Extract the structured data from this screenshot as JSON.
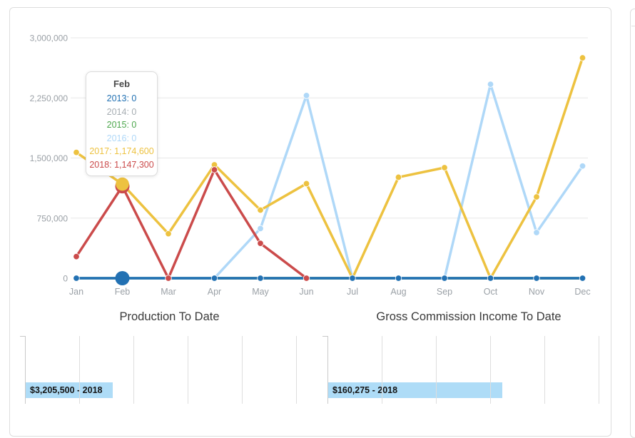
{
  "tooltip": {
    "title": "Feb",
    "rows": [
      {
        "year": "2013",
        "value": "0"
      },
      {
        "year": "2014",
        "value": "0"
      },
      {
        "year": "2015",
        "value": "0"
      },
      {
        "year": "2016",
        "value": "0"
      },
      {
        "year": "2017",
        "value": "1,174,600"
      },
      {
        "year": "2018",
        "value": "1,147,300"
      }
    ]
  },
  "chart_data": [
    {
      "type": "line",
      "title": "",
      "categories": [
        "Jan",
        "Feb",
        "Mar",
        "Apr",
        "May",
        "Jun",
        "Jul",
        "Aug",
        "Sep",
        "Oct",
        "Nov",
        "Dec"
      ],
      "ylim": [
        0,
        3000000
      ],
      "grid": true,
      "y_ticks": [
        {
          "value": 0,
          "label": "0"
        },
        {
          "value": 750000,
          "label": "750,000"
        },
        {
          "value": 1500000,
          "label": "1,500,000"
        },
        {
          "value": 2250000,
          "label": "2,250,000"
        },
        {
          "value": 3000000,
          "label": "3,000,000"
        }
      ],
      "highlight_index": 1,
      "highlight_month": "Feb",
      "series": [
        {
          "name": "2013",
          "color": "#2271b3",
          "values": [
            0,
            0,
            0,
            0,
            0,
            0,
            0,
            0,
            0,
            0,
            0,
            0
          ]
        },
        {
          "name": "2014",
          "color": "#a6adb2",
          "values": [
            0,
            0,
            0,
            0,
            0,
            0,
            0,
            0,
            0,
            0,
            0,
            0
          ]
        },
        {
          "name": "2015",
          "color": "#4da74d",
          "values": [
            0,
            0,
            0,
            0,
            0,
            0,
            0,
            0,
            0,
            0,
            0,
            0
          ]
        },
        {
          "name": "2016",
          "color": "#afd8f8",
          "values": [
            0,
            0,
            0,
            0,
            620000,
            2280000,
            0,
            0,
            0,
            2420000,
            570000,
            1400000
          ]
        },
        {
          "name": "2017",
          "color": "#edc240",
          "values": [
            1570000,
            1174600,
            555000,
            1415000,
            850000,
            1180000,
            0,
            1260000,
            1380000,
            0,
            1015000,
            2750000
          ]
        },
        {
          "name": "2018",
          "color": "#cb4b4b",
          "values": [
            270000,
            1147300,
            0,
            1353200,
            435000,
            0,
            null,
            null,
            null,
            null,
            null,
            null
          ]
        }
      ]
    },
    {
      "type": "bar",
      "orientation": "horizontal",
      "title": "Production To Date",
      "grid_step_value": 2000000,
      "bar_color": "#aedcf7",
      "bars": [
        {
          "year": "2018",
          "value": 3205500,
          "label": "$3,205,500 - 2018"
        }
      ]
    },
    {
      "type": "bar",
      "orientation": "horizontal",
      "title": "Gross Commission Income To Date",
      "grid_step_value": 50000,
      "bar_color": "#aedcf7",
      "bars": [
        {
          "year": "2018",
          "value": 160275,
          "label": "$160,275 - 2018"
        }
      ]
    }
  ]
}
